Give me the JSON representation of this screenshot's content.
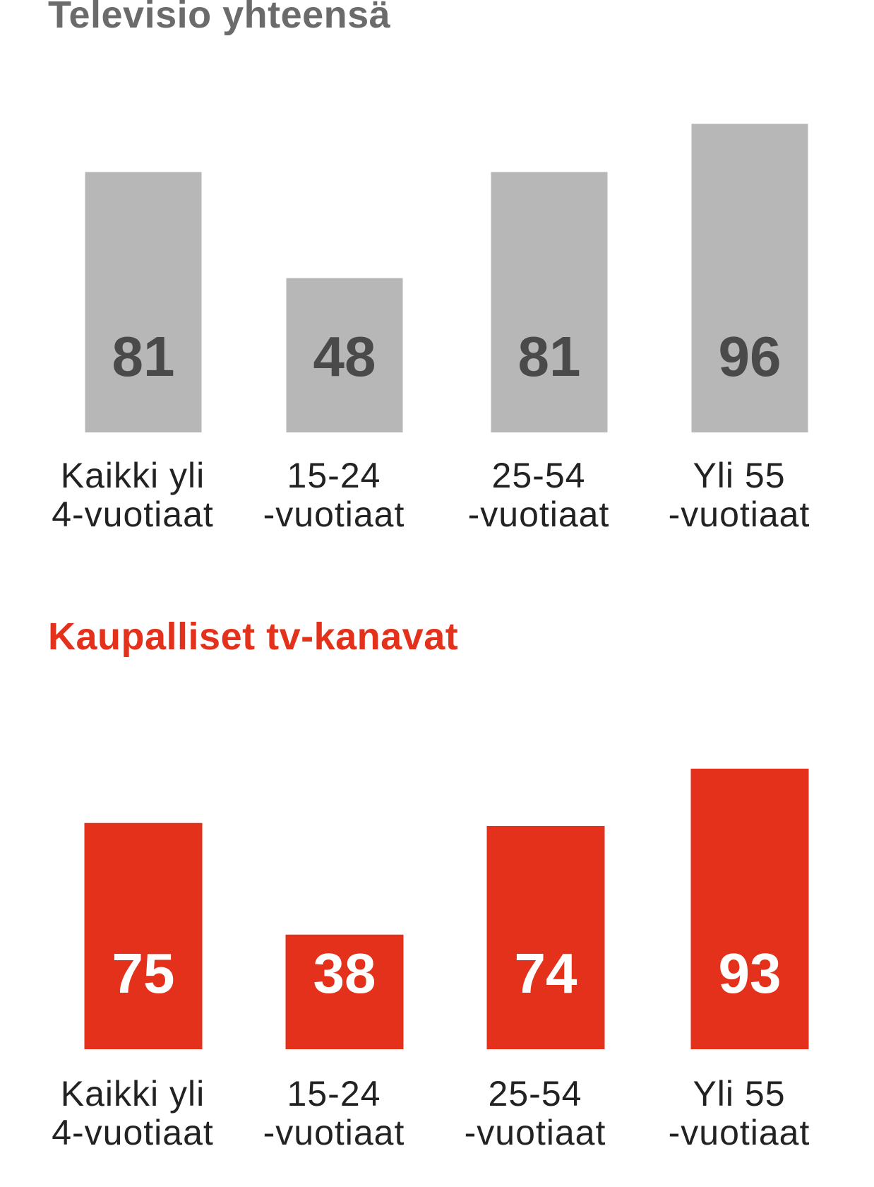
{
  "chart_data": [
    {
      "type": "bar",
      "title": "Televisio yhteensä",
      "categories": [
        [
          "Kaikki yli",
          "4-vuotiaat"
        ],
        [
          "15-24",
          "-vuotiaat"
        ],
        [
          "25-54",
          "-vuotiaat"
        ],
        [
          "Yli 55",
          "-vuotiaat"
        ]
      ],
      "values": [
        81,
        48,
        81,
        96
      ],
      "colors": {
        "bar": "#b7b7b7",
        "value_label": "#4a4a4a",
        "title": "#6b6b6b"
      }
    },
    {
      "type": "bar",
      "title": "Kaupalliset tv-kanavat",
      "categories": [
        [
          "Kaikki yli",
          "4-vuotiaat"
        ],
        [
          "15-24",
          "-vuotiaat"
        ],
        [
          "25-54",
          "-vuotiaat"
        ],
        [
          "Yli 55",
          "-vuotiaat"
        ]
      ],
      "values": [
        75,
        38,
        74,
        93
      ],
      "colors": {
        "bar": "#e4311b",
        "value_label": "#ffffff",
        "title": "#e4311b"
      }
    }
  ]
}
